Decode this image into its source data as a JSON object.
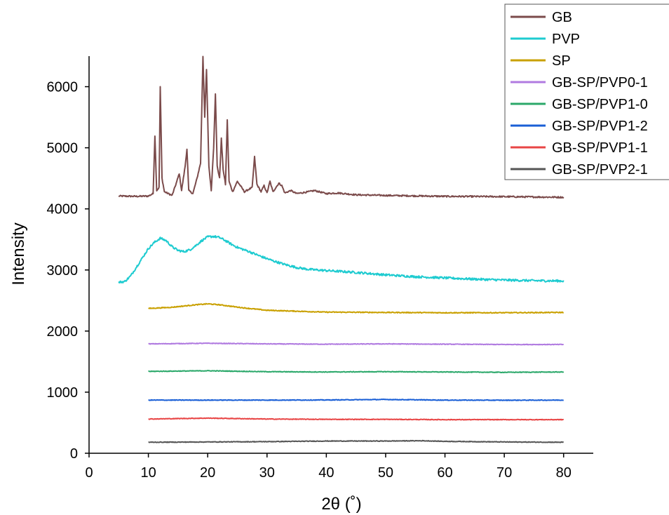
{
  "chart_data": {
    "type": "line",
    "title": "",
    "xlabel": "2θ (˚)",
    "ylabel": "Intensity",
    "xlim": [
      0,
      85
    ],
    "ylim": [
      0,
      6500
    ],
    "xticks": [
      "0",
      "10",
      "20",
      "30",
      "40",
      "50",
      "60",
      "70",
      "80"
    ],
    "yticks": [
      "0",
      "1000",
      "2000",
      "3000",
      "4000",
      "5000",
      "6000"
    ],
    "grid": false,
    "legend_position": "top-right",
    "series": [
      {
        "name": "GB",
        "color": "#7b4b4b",
        "noise": 12,
        "points": [
          [
            5,
            4210
          ],
          [
            8,
            4205
          ],
          [
            10,
            4210
          ],
          [
            10.8,
            4250
          ],
          [
            11.1,
            5200
          ],
          [
            11.4,
            4300
          ],
          [
            11.8,
            4350
          ],
          [
            12.0,
            6000
          ],
          [
            12.3,
            4500
          ],
          [
            12.7,
            4280
          ],
          [
            14,
            4220
          ],
          [
            14.8,
            4450
          ],
          [
            15.2,
            4580
          ],
          [
            15.6,
            4300
          ],
          [
            16.2,
            4700
          ],
          [
            16.5,
            4980
          ],
          [
            16.8,
            4300
          ],
          [
            17.5,
            4250
          ],
          [
            18.2,
            4500
          ],
          [
            18.8,
            4750
          ],
          [
            19.2,
            6500
          ],
          [
            19.5,
            5500
          ],
          [
            19.8,
            6280
          ],
          [
            20.2,
            4700
          ],
          [
            20.6,
            4300
          ],
          [
            21.0,
            5000
          ],
          [
            21.3,
            5890
          ],
          [
            21.6,
            4700
          ],
          [
            22.0,
            4500
          ],
          [
            22.3,
            5150
          ],
          [
            22.6,
            4650
          ],
          [
            23.0,
            4400
          ],
          [
            23.3,
            5450
          ],
          [
            23.6,
            4450
          ],
          [
            24.2,
            4280
          ],
          [
            25.0,
            4450
          ],
          [
            25.5,
            4380
          ],
          [
            26.2,
            4280
          ],
          [
            27.5,
            4350
          ],
          [
            27.9,
            4850
          ],
          [
            28.3,
            4400
          ],
          [
            29.0,
            4280
          ],
          [
            29.5,
            4380
          ],
          [
            30.0,
            4260
          ],
          [
            30.5,
            4450
          ],
          [
            31.0,
            4280
          ],
          [
            32.0,
            4420
          ],
          [
            32.5,
            4380
          ],
          [
            33.0,
            4260
          ],
          [
            34.0,
            4300
          ],
          [
            35.0,
            4250
          ],
          [
            37.0,
            4280
          ],
          [
            38.0,
            4300
          ],
          [
            40.0,
            4250
          ],
          [
            42.0,
            4260
          ],
          [
            43.0,
            4250
          ],
          [
            45.0,
            4230
          ],
          [
            50.0,
            4220
          ],
          [
            60.0,
            4205
          ],
          [
            70.0,
            4200
          ],
          [
            80.0,
            4190
          ]
        ]
      },
      {
        "name": "PVP",
        "color": "#1ecbd0",
        "noise": 18,
        "points": [
          [
            5,
            2800
          ],
          [
            6,
            2810
          ],
          [
            7,
            2900
          ],
          [
            8,
            3050
          ],
          [
            9,
            3200
          ],
          [
            10,
            3350
          ],
          [
            11,
            3450
          ],
          [
            12,
            3520
          ],
          [
            13,
            3480
          ],
          [
            14,
            3380
          ],
          [
            15,
            3320
          ],
          [
            16,
            3300
          ],
          [
            17,
            3330
          ],
          [
            18,
            3400
          ],
          [
            19,
            3480
          ],
          [
            20,
            3540
          ],
          [
            21,
            3550
          ],
          [
            22,
            3530
          ],
          [
            23,
            3480
          ],
          [
            24,
            3420
          ],
          [
            25,
            3370
          ],
          [
            27,
            3300
          ],
          [
            29,
            3220
          ],
          [
            31,
            3150
          ],
          [
            33,
            3090
          ],
          [
            35,
            3040
          ],
          [
            37,
            3010
          ],
          [
            40,
            2990
          ],
          [
            45,
            2960
          ],
          [
            50,
            2920
          ],
          [
            55,
            2890
          ],
          [
            60,
            2870
          ],
          [
            65,
            2850
          ],
          [
            70,
            2835
          ],
          [
            75,
            2825
          ],
          [
            80,
            2820
          ]
        ]
      },
      {
        "name": "SP",
        "color": "#c9a000",
        "noise": 7,
        "points": [
          [
            10,
            2370
          ],
          [
            14,
            2390
          ],
          [
            18,
            2430
          ],
          [
            20,
            2445
          ],
          [
            22,
            2430
          ],
          [
            26,
            2380
          ],
          [
            30,
            2340
          ],
          [
            40,
            2310
          ],
          [
            50,
            2305
          ],
          [
            60,
            2300
          ],
          [
            70,
            2300
          ],
          [
            80,
            2305
          ]
        ]
      },
      {
        "name": "GB-SP/PVP0-1",
        "color": "#b07ae0",
        "noise": 5,
        "points": [
          [
            10,
            1790
          ],
          [
            20,
            1800
          ],
          [
            30,
            1790
          ],
          [
            40,
            1785
          ],
          [
            50,
            1790
          ],
          [
            60,
            1785
          ],
          [
            70,
            1780
          ],
          [
            80,
            1780
          ]
        ]
      },
      {
        "name": "GB-SP/PVP1-0",
        "color": "#2ba86a",
        "noise": 5,
        "points": [
          [
            10,
            1340
          ],
          [
            20,
            1350
          ],
          [
            30,
            1335
          ],
          [
            40,
            1330
          ],
          [
            50,
            1335
          ],
          [
            60,
            1330
          ],
          [
            70,
            1325
          ],
          [
            80,
            1330
          ]
        ]
      },
      {
        "name": "GB-SP/PVP1-2",
        "color": "#1a5fd6",
        "noise": 5,
        "points": [
          [
            10,
            870
          ],
          [
            20,
            870
          ],
          [
            30,
            870
          ],
          [
            40,
            872
          ],
          [
            50,
            880
          ],
          [
            60,
            870
          ],
          [
            70,
            868
          ],
          [
            80,
            870
          ]
        ]
      },
      {
        "name": "GB-SP/PVP1-1",
        "color": "#e84545",
        "noise": 5,
        "points": [
          [
            10,
            560
          ],
          [
            20,
            575
          ],
          [
            30,
            560
          ],
          [
            40,
            555
          ],
          [
            50,
            555
          ],
          [
            60,
            550
          ],
          [
            70,
            550
          ],
          [
            80,
            550
          ]
        ]
      },
      {
        "name": "GB-SP/PVP2-1",
        "color": "#555555",
        "noise": 5,
        "points": [
          [
            10,
            180
          ],
          [
            20,
            185
          ],
          [
            30,
            190
          ],
          [
            40,
            200
          ],
          [
            50,
            200
          ],
          [
            56,
            205
          ],
          [
            60,
            195
          ],
          [
            70,
            185
          ],
          [
            80,
            180
          ]
        ]
      }
    ]
  }
}
